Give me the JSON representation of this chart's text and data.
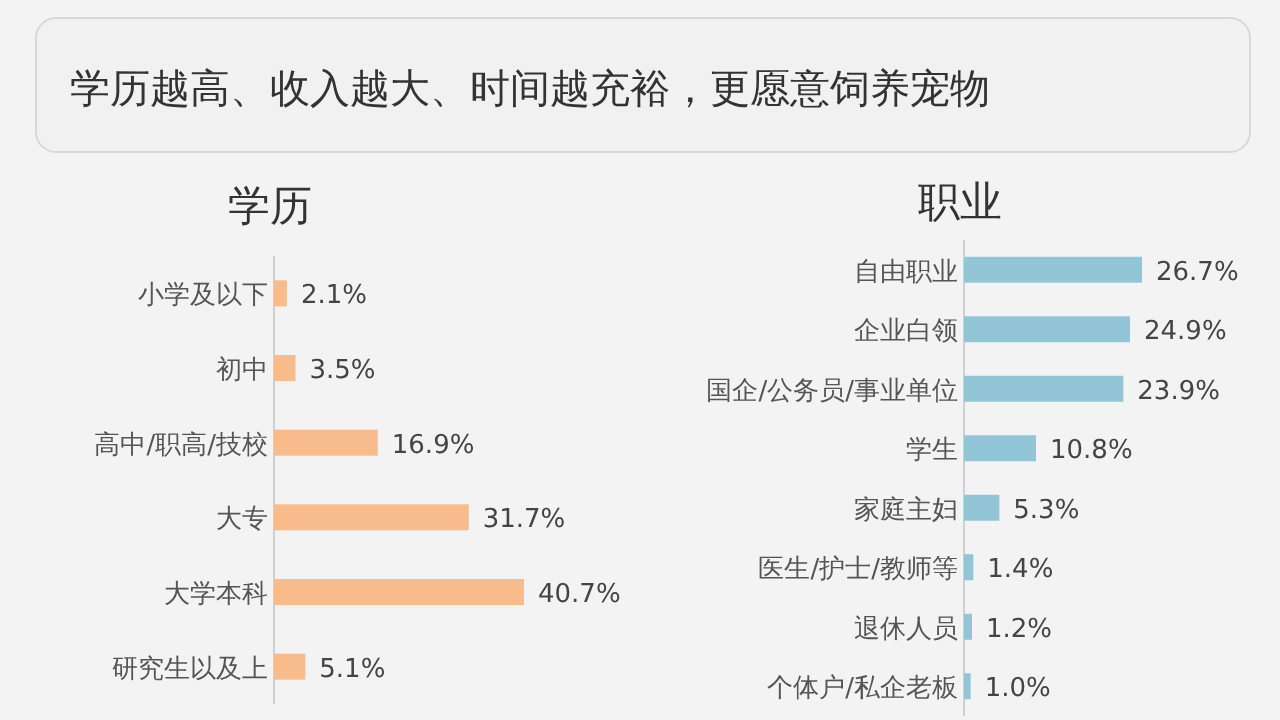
{
  "chart_data": [
    {
      "type": "other",
      "title": "学历越高、收入越大、时间越充裕，更愿意饲养宠物"
    },
    {
      "type": "bar",
      "orientation": "horizontal",
      "title": "学历",
      "categories": [
        "小学及以下",
        "初中",
        "高中/职高/技校",
        "大专",
        "大学本科",
        "研究生以及上"
      ],
      "values": [
        2.1,
        3.5,
        16.9,
        31.7,
        40.7,
        5.1
      ],
      "value_labels": [
        "2.1%",
        "3.5%",
        "16.9%",
        "31.7%",
        "40.7%",
        "5.1%"
      ],
      "color": "#f8bc8c"
    },
    {
      "type": "bar",
      "orientation": "horizontal",
      "title": "职业",
      "categories": [
        "自由职业",
        "企业白领",
        "国企/公务员/事业单位",
        "学生",
        "家庭主妇",
        "医生/护士/教师等",
        "退休人员",
        "个体户/私企老板"
      ],
      "values": [
        26.7,
        24.9,
        23.9,
        10.8,
        5.3,
        1.4,
        1.2,
        1.0
      ],
      "value_labels": [
        "26.7%",
        "24.9%",
        "23.9%",
        "10.8%",
        "5.3%",
        "1.4%",
        "1.2%",
        "1.0%"
      ],
      "color": "#92c6d6"
    }
  ]
}
